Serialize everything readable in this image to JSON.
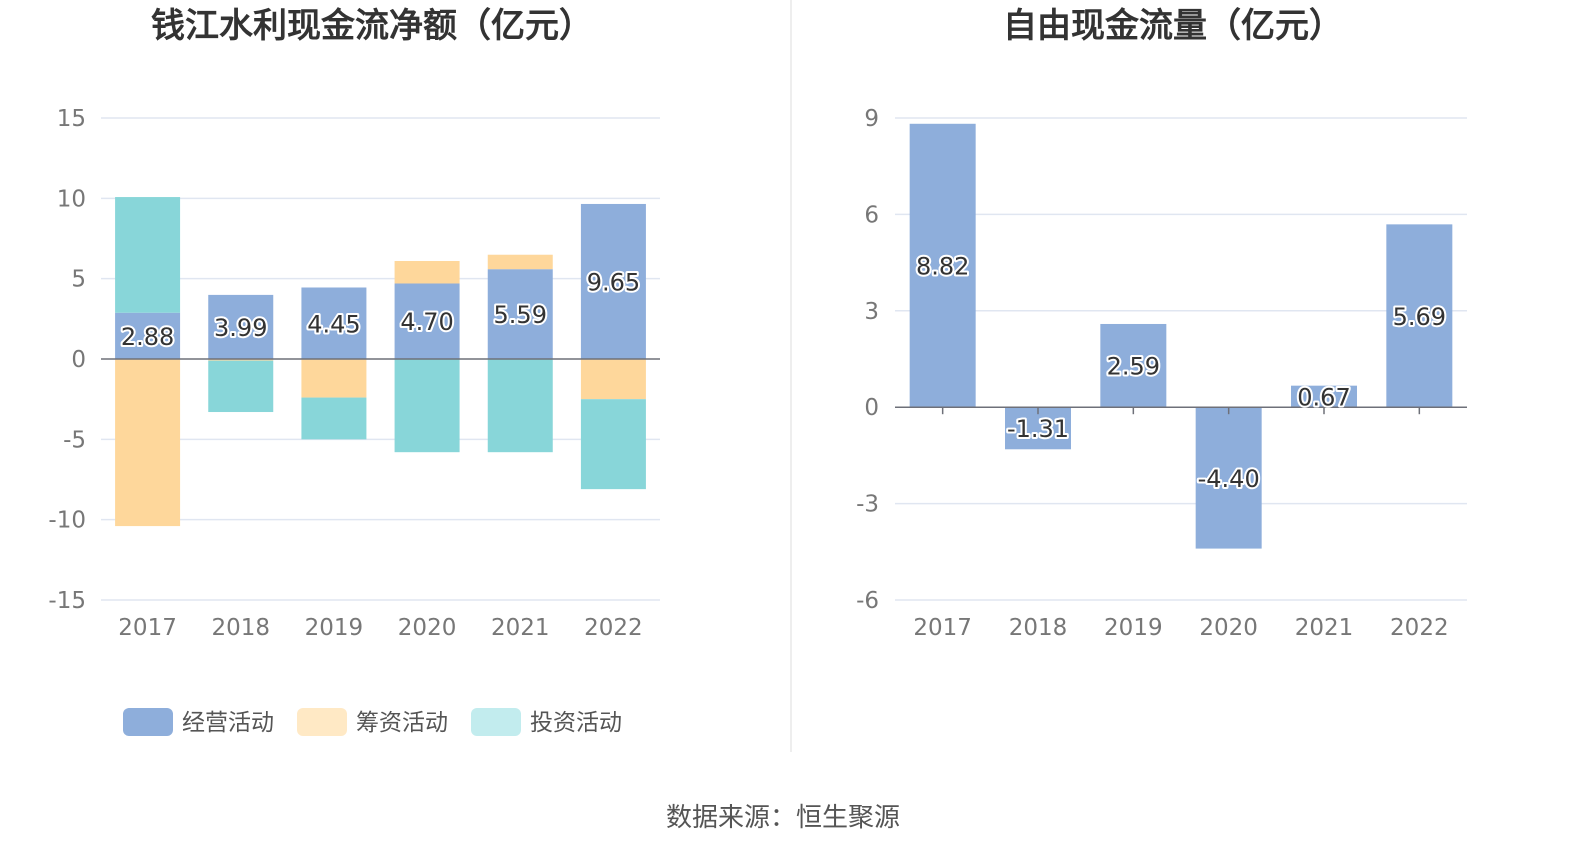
{
  "source_text": "数据来源：恒生聚源",
  "chart_data": [
    {
      "type": "bar",
      "stacked": true,
      "title": "钱江水利现金流净额（亿元）",
      "categories": [
        "2017",
        "2018",
        "2019",
        "2020",
        "2021",
        "2022"
      ],
      "ylim": [
        -15,
        15
      ],
      "yticks": [
        "15",
        "10",
        "5",
        "0",
        "-5",
        "-10",
        "-15"
      ],
      "yticks_values": [
        15,
        10,
        5,
        0,
        -5,
        -10,
        -15
      ],
      "series": [
        {
          "name": "经营活动",
          "color": "#8eaedb",
          "values": [
            2.88,
            3.99,
            4.45,
            4.7,
            5.59,
            9.65
          ],
          "labels": [
            "2.88",
            "3.99",
            "4.45",
            "4.70",
            "5.59",
            "9.65"
          ]
        },
        {
          "name": "筹资活动",
          "color": "#fed79b",
          "values": [
            -10.4,
            -0.1,
            -2.4,
            1.4,
            0.9,
            -2.5
          ]
        },
        {
          "name": "投资活动",
          "color": "#88d6d9",
          "values": [
            7.2,
            -3.2,
            -2.6,
            -5.8,
            -5.8,
            -5.6
          ]
        }
      ],
      "legend": [
        {
          "name": "经营活动",
          "color": "#8eaedb"
        },
        {
          "name": "筹资活动",
          "color": "#ffe9c5"
        },
        {
          "name": "投资活动",
          "color": "#c2ecee"
        }
      ],
      "grid": true
    },
    {
      "type": "bar",
      "title": "自由现金流量（亿元）",
      "categories": [
        "2017",
        "2018",
        "2019",
        "2020",
        "2021",
        "2022"
      ],
      "ylim": [
        -6,
        9
      ],
      "yticks": [
        "9",
        "6",
        "3",
        "0",
        "-3",
        "-6"
      ],
      "yticks_values": [
        9,
        6,
        3,
        0,
        -3,
        -6
      ],
      "series": [
        {
          "color": "#8eaedb",
          "values": [
            8.82,
            -1.31,
            2.59,
            -4.4,
            0.67,
            5.69
          ],
          "labels": [
            "8.82",
            "-1.31",
            "2.59",
            "-4.40",
            "0.67",
            "5.69"
          ]
        }
      ],
      "grid": true
    }
  ]
}
